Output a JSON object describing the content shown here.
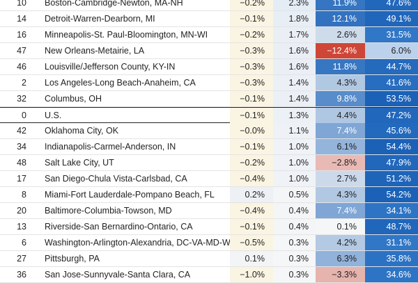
{
  "chart_data": {
    "type": "table",
    "rows": [
      {
        "rank": "10",
        "name": "Boston-Cambridge-Newton, MA-NH",
        "c1": "−0.2%",
        "c2": "2.3%",
        "c3": "11.9%",
        "c4": "47.6%",
        "v1": -0.2,
        "v2": 2.3,
        "v3": 11.9,
        "v4": 47.6
      },
      {
        "rank": "14",
        "name": "Detroit-Warren-Dearborn, MI",
        "c1": "−0.1%",
        "c2": "1.8%",
        "c3": "12.1%",
        "c4": "49.1%",
        "v1": -0.1,
        "v2": 1.8,
        "v3": 12.1,
        "v4": 49.1
      },
      {
        "rank": "16",
        "name": "Minneapolis-St. Paul-Bloomington, MN-WI",
        "c1": "−0.2%",
        "c2": "1.7%",
        "c3": "2.6%",
        "c4": "31.5%",
        "v1": -0.2,
        "v2": 1.7,
        "v3": 2.6,
        "v4": 31.5
      },
      {
        "rank": "47",
        "name": "New Orleans-Metairie, LA",
        "c1": "−0.3%",
        "c2": "1.6%",
        "c3": "−12.4%",
        "c4": "6.0%",
        "v1": -0.3,
        "v2": 1.6,
        "v3": -12.4,
        "v4": 6.0
      },
      {
        "rank": "46",
        "name": "Louisville/Jefferson County, KY-IN",
        "c1": "−0.3%",
        "c2": "1.6%",
        "c3": "11.8%",
        "c4": "44.7%",
        "v1": -0.3,
        "v2": 1.6,
        "v3": 11.8,
        "v4": 44.7
      },
      {
        "rank": "2",
        "name": "Los Angeles-Long Beach-Anaheim, CA",
        "c1": "−0.3%",
        "c2": "1.4%",
        "c3": "4.3%",
        "c4": "41.6%",
        "v1": -0.3,
        "v2": 1.4,
        "v3": 4.3,
        "v4": 41.6
      },
      {
        "rank": "32",
        "name": "Columbus, OH",
        "c1": "−0.1%",
        "c2": "1.4%",
        "c3": "9.8%",
        "c4": "53.5%",
        "v1": -0.1,
        "v2": 1.4,
        "v3": 9.8,
        "v4": 53.5
      },
      {
        "rank": "0",
        "name": "U.S.",
        "c1": "−0.1%",
        "c2": "1.3%",
        "c3": "4.4%",
        "c4": "47.2%",
        "v1": -0.1,
        "v2": 1.3,
        "v3": 4.4,
        "v4": 47.2,
        "highlight": true
      },
      {
        "rank": "42",
        "name": "Oklahoma City, OK",
        "c1": "−0.0%",
        "c2": "1.1%",
        "c3": "7.4%",
        "c4": "45.6%",
        "v1": -0.0,
        "v2": 1.1,
        "v3": 7.4,
        "v4": 45.6
      },
      {
        "rank": "34",
        "name": "Indianapolis-Carmel-Anderson, IN",
        "c1": "−0.1%",
        "c2": "1.0%",
        "c3": "6.1%",
        "c4": "54.4%",
        "v1": -0.1,
        "v2": 1.0,
        "v3": 6.1,
        "v4": 54.4
      },
      {
        "rank": "48",
        "name": "Salt Lake City, UT",
        "c1": "−0.2%",
        "c2": "1.0%",
        "c3": "−2.8%",
        "c4": "47.9%",
        "v1": -0.2,
        "v2": 1.0,
        "v3": -2.8,
        "v4": 47.9
      },
      {
        "rank": "17",
        "name": "San Diego-Chula Vista-Carlsbad, CA",
        "c1": "−0.4%",
        "c2": "1.0%",
        "c3": "2.7%",
        "c4": "51.2%",
        "v1": -0.4,
        "v2": 1.0,
        "v3": 2.7,
        "v4": 51.2
      },
      {
        "rank": "8",
        "name": "Miami-Fort Lauderdale-Pompano Beach, FL",
        "c1": "0.2%",
        "c2": "0.5%",
        "c3": "4.3%",
        "c4": "54.2%",
        "v1": 0.2,
        "v2": 0.5,
        "v3": 4.3,
        "v4": 54.2
      },
      {
        "rank": "20",
        "name": "Baltimore-Columbia-Towson, MD",
        "c1": "−0.4%",
        "c2": "0.4%",
        "c3": "7.4%",
        "c4": "34.1%",
        "v1": -0.4,
        "v2": 0.4,
        "v3": 7.4,
        "v4": 34.1
      },
      {
        "rank": "13",
        "name": "Riverside-San Bernardino-Ontario, CA",
        "c1": "−0.1%",
        "c2": "0.4%",
        "c3": "0.1%",
        "c4": "48.7%",
        "v1": -0.1,
        "v2": 0.4,
        "v3": 0.1,
        "v4": 48.7
      },
      {
        "rank": "6",
        "name": "Washington-Arlington-Alexandria, DC-VA-MD-WV",
        "c1": "−0.5%",
        "c2": "0.3%",
        "c3": "4.2%",
        "c4": "31.1%",
        "v1": -0.5,
        "v2": 0.3,
        "v3": 4.2,
        "v4": 31.1
      },
      {
        "rank": "27",
        "name": "Pittsburgh, PA",
        "c1": "0.1%",
        "c2": "0.3%",
        "c3": "6.3%",
        "c4": "35.8%",
        "v1": 0.1,
        "v2": 0.3,
        "v3": 6.3,
        "v4": 35.8
      },
      {
        "rank": "36",
        "name": "San Jose-Sunnyvale-Santa Clara, CA",
        "c1": "−1.0%",
        "c2": "0.3%",
        "c3": "−3.3%",
        "c4": "34.6%",
        "v1": -1.0,
        "v2": 0.3,
        "v3": -3.3,
        "v4": 34.6
      }
    ]
  }
}
